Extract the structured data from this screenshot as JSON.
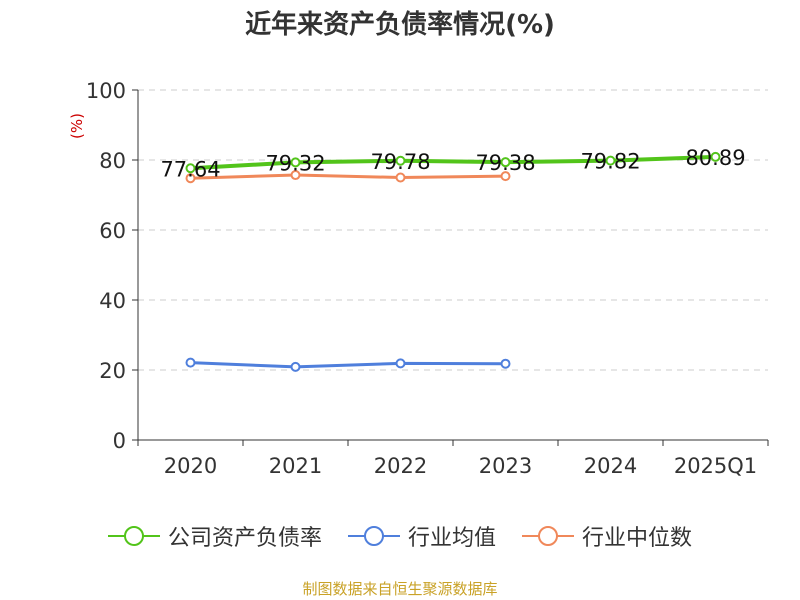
{
  "chart_data": {
    "type": "line",
    "title": "近年来资产负债率情况(%)",
    "ylabel": "(%)",
    "categories": [
      "2020",
      "2021",
      "2022",
      "2023",
      "2024",
      "2025Q1"
    ],
    "ylim": [
      0,
      100
    ],
    "yticks": [
      0,
      20,
      40,
      60,
      80,
      100
    ],
    "grid": true,
    "legend_position": "bottom",
    "series": [
      {
        "name": "公司资产负债率",
        "color": "#52c41a",
        "values": [
          77.64,
          79.32,
          79.78,
          79.38,
          79.82,
          80.89
        ],
        "labels": [
          "77.64",
          "79.32",
          "79.78",
          "79.38",
          "79.82",
          "80.89"
        ]
      },
      {
        "name": "行业均值",
        "color": "#4f7fdc",
        "values": [
          22.1,
          20.9,
          21.9,
          21.8,
          null,
          null
        ]
      },
      {
        "name": "行业中位数",
        "color": "#f0885a",
        "values": [
          74.8,
          75.7,
          75.0,
          75.4,
          null,
          null
        ]
      }
    ]
  },
  "source": "制图数据来自恒生聚源数据库"
}
